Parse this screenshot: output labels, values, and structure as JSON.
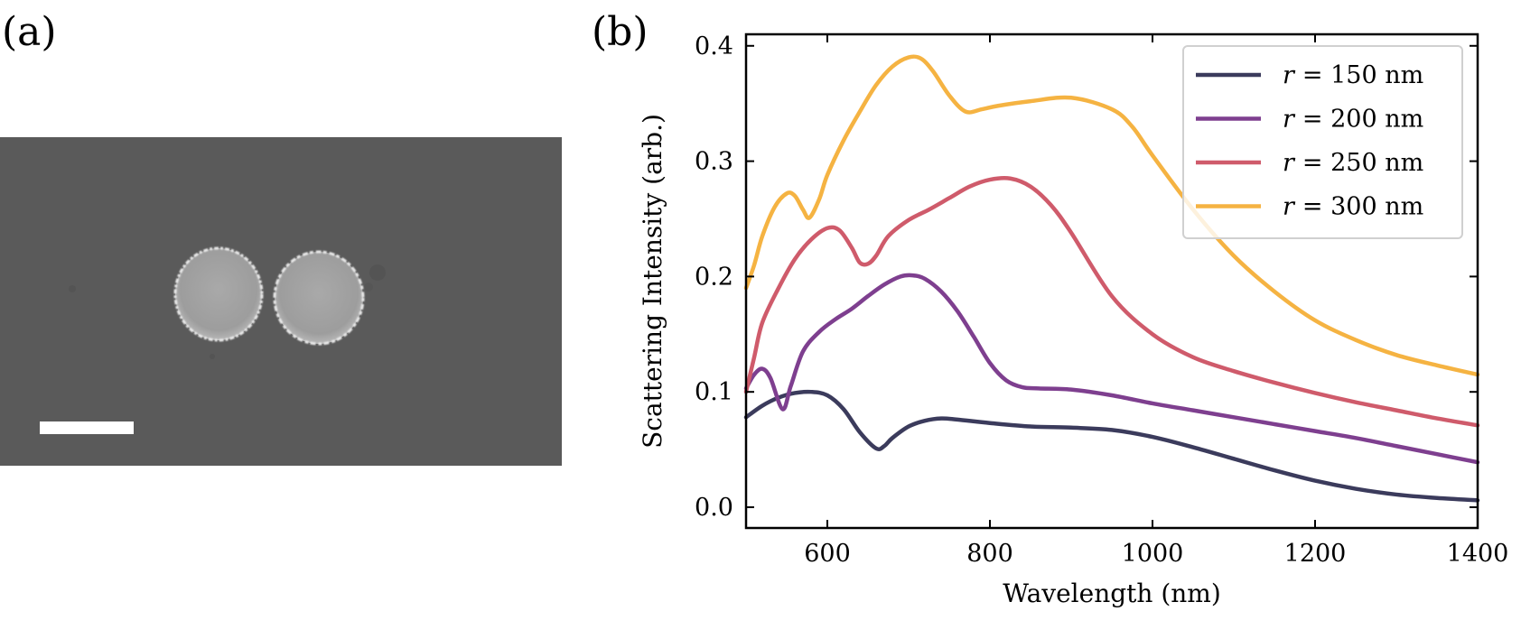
{
  "panels": {
    "a": {
      "label": "(a)",
      "image": "SEM micrograph of two nanodisks with scale bar"
    },
    "b": {
      "label": "(b)"
    }
  },
  "colors": {
    "sem_background": "#5a5a5a",
    "scale_bar": "#ffffff"
  },
  "chart_data": {
    "type": "line",
    "title": "",
    "xlabel": "Wavelength (nm)",
    "ylabel": "Scattering Intensity (arb.)",
    "xlim": [
      500,
      1400
    ],
    "ylim": [
      -0.018,
      0.41
    ],
    "xticks": [
      600,
      800,
      1000,
      1200,
      1400
    ],
    "yticks": [
      0.0,
      0.1,
      0.2,
      0.3,
      0.4
    ],
    "xtick_labels": [
      "600",
      "800",
      "1000",
      "1200",
      "1400"
    ],
    "ytick_labels": [
      "0.0",
      "0.1",
      "0.2",
      "0.3",
      "0.4"
    ],
    "legend_position": "top-right",
    "series": [
      {
        "name": "r = 150 nm",
        "label_var": "r",
        "label_value": "= 150 nm",
        "color": "#3b3b5c",
        "x": [
          500,
          520,
          540,
          560,
          580,
          600,
          620,
          640,
          660,
          670,
          680,
          700,
          720,
          740,
          760,
          800,
          850,
          900,
          950,
          1000,
          1050,
          1100,
          1150,
          1200,
          1250,
          1300,
          1350,
          1400
        ],
        "y": [
          0.078,
          0.088,
          0.095,
          0.099,
          0.1,
          0.097,
          0.085,
          0.065,
          0.051,
          0.053,
          0.06,
          0.07,
          0.075,
          0.077,
          0.076,
          0.073,
          0.07,
          0.069,
          0.067,
          0.061,
          0.052,
          0.042,
          0.032,
          0.023,
          0.016,
          0.011,
          0.008,
          0.006
        ]
      },
      {
        "name": "r = 200 nm",
        "label_var": "r",
        "label_value": "= 200 nm",
        "color": "#7e3f8f",
        "x": [
          500,
          510,
          520,
          530,
          545,
          555,
          570,
          590,
          610,
          630,
          650,
          670,
          690,
          705,
          720,
          740,
          760,
          780,
          800,
          820,
          840,
          860,
          900,
          950,
          1000,
          1050,
          1100,
          1150,
          1200,
          1250,
          1300,
          1350,
          1400
        ],
        "y": [
          0.103,
          0.115,
          0.12,
          0.112,
          0.085,
          0.105,
          0.135,
          0.152,
          0.163,
          0.172,
          0.183,
          0.193,
          0.2,
          0.201,
          0.198,
          0.187,
          0.17,
          0.148,
          0.125,
          0.11,
          0.104,
          0.103,
          0.102,
          0.097,
          0.09,
          0.084,
          0.078,
          0.072,
          0.066,
          0.06,
          0.053,
          0.046,
          0.039
        ]
      },
      {
        "name": "r = 250 nm",
        "label_var": "r",
        "label_value": "= 250 nm",
        "color": "#cf5b6b",
        "x": [
          500,
          510,
          520,
          540,
          560,
          580,
          600,
          615,
          630,
          640,
          650,
          660,
          675,
          700,
          725,
          750,
          775,
          800,
          825,
          850,
          875,
          900,
          950,
          1000,
          1050,
          1100,
          1150,
          1200,
          1250,
          1300,
          1350,
          1400
        ],
        "y": [
          0.1,
          0.13,
          0.16,
          0.19,
          0.215,
          0.232,
          0.242,
          0.24,
          0.225,
          0.212,
          0.211,
          0.218,
          0.235,
          0.249,
          0.258,
          0.268,
          0.278,
          0.284,
          0.285,
          0.278,
          0.262,
          0.238,
          0.183,
          0.15,
          0.13,
          0.118,
          0.108,
          0.099,
          0.091,
          0.084,
          0.077,
          0.071
        ]
      },
      {
        "name": "r = 300 nm",
        "label_var": "r",
        "label_value": "= 300 nm",
        "color": "#f5b342",
        "x": [
          500,
          510,
          520,
          535,
          550,
          560,
          570,
          578,
          590,
          600,
          620,
          640,
          660,
          680,
          700,
          715,
          730,
          750,
          770,
          790,
          810,
          850,
          900,
          950,
          975,
          1000,
          1050,
          1100,
          1150,
          1200,
          1250,
          1300,
          1350,
          1400
        ],
        "y": [
          0.19,
          0.21,
          0.235,
          0.26,
          0.272,
          0.27,
          0.258,
          0.251,
          0.267,
          0.288,
          0.318,
          0.343,
          0.366,
          0.382,
          0.39,
          0.389,
          0.378,
          0.357,
          0.343,
          0.345,
          0.348,
          0.352,
          0.355,
          0.345,
          0.33,
          0.305,
          0.258,
          0.218,
          0.187,
          0.162,
          0.145,
          0.132,
          0.123,
          0.115
        ]
      }
    ]
  }
}
